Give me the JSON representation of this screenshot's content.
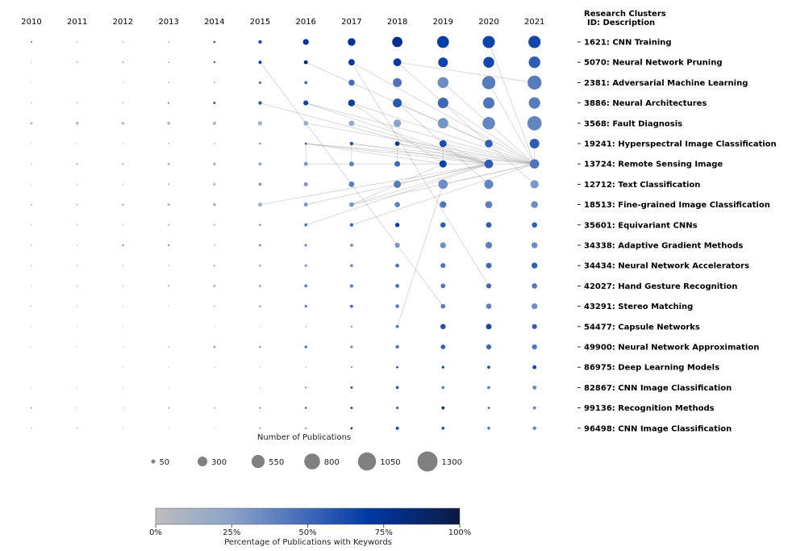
{
  "chart_data": {
    "type": "scatter",
    "subtype": "bubble-timeline",
    "years": [
      "2010",
      "2011",
      "2012",
      "2013",
      "2014",
      "2015",
      "2016",
      "2017",
      "2018",
      "2019",
      "2020",
      "2021"
    ],
    "legend_header": {
      "line1": "Research Clusters",
      "line2": "ID: Description"
    },
    "clusters": [
      {
        "label": "1621: CNN Training",
        "counts": [
          10,
          5,
          5,
          5,
          15,
          40,
          110,
          190,
          340,
          450,
          470,
          480
        ],
        "pct": [
          35,
          30,
          30,
          35,
          55,
          62,
          72,
          75,
          78,
          68,
          66,
          64
        ]
      },
      {
        "label": "5070: Neural Network Pruning",
        "counts": [
          2,
          5,
          2,
          5,
          10,
          30,
          50,
          130,
          200,
          300,
          380,
          430
        ],
        "pct": [
          20,
          35,
          95,
          35,
          70,
          70,
          85,
          72,
          70,
          66,
          64,
          55
        ]
      },
      {
        "label": "2381: Adversarial Machine Learning",
        "counts": [
          2,
          0,
          2,
          5,
          5,
          20,
          30,
          120,
          250,
          380,
          560,
          620
        ],
        "pct": [
          15,
          0,
          20,
          30,
          45,
          50,
          50,
          48,
          45,
          35,
          42,
          42
        ]
      },
      {
        "label": "3886: Neural Architectures",
        "counts": [
          5,
          5,
          5,
          10,
          15,
          40,
          80,
          150,
          250,
          360,
          410,
          420
        ],
        "pct": [
          30,
          20,
          30,
          40,
          70,
          55,
          65,
          68,
          58,
          50,
          45,
          42
        ]
      },
      {
        "label": "3568: Fault Diagnosis",
        "counts": [
          20,
          30,
          25,
          30,
          40,
          60,
          70,
          100,
          180,
          350,
          500,
          650
        ],
        "pct": [
          5,
          5,
          5,
          5,
          5,
          10,
          15,
          18,
          25,
          32,
          38,
          38
        ]
      },
      {
        "label": "19241: Hyperspectral Image Classification",
        "counts": [
          2,
          2,
          2,
          5,
          5,
          10,
          20,
          40,
          70,
          160,
          190,
          300
        ],
        "pct": [
          20,
          20,
          20,
          30,
          30,
          40,
          45,
          60,
          70,
          62,
          55,
          55
        ]
      },
      {
        "label": "13724: Remote Sensing Image",
        "counts": [
          5,
          10,
          10,
          15,
          20,
          30,
          50,
          70,
          100,
          170,
          240,
          280
        ],
        "pct": [
          15,
          15,
          15,
          15,
          20,
          25,
          30,
          40,
          50,
          66,
          55,
          45
        ]
      },
      {
        "label": "12712: Text Classification",
        "counts": [
          2,
          5,
          5,
          10,
          15,
          30,
          50,
          100,
          170,
          280,
          260,
          220
        ],
        "pct": [
          10,
          15,
          15,
          15,
          20,
          30,
          32,
          40,
          42,
          35,
          38,
          30
        ]
      },
      {
        "label": "18513: Fine-grained Image Classification",
        "counts": [
          10,
          10,
          15,
          20,
          30,
          50,
          50,
          70,
          90,
          140,
          160,
          150
        ],
        "pct": [
          5,
          5,
          5,
          5,
          8,
          15,
          30,
          32,
          40,
          45,
          40,
          35
        ]
      },
      {
        "label": "35601: Equivariant CNNs",
        "counts": [
          5,
          5,
          5,
          10,
          10,
          15,
          30,
          40,
          60,
          90,
          100,
          90
        ],
        "pct": [
          15,
          15,
          15,
          15,
          20,
          30,
          45,
          50,
          70,
          55,
          55,
          55
        ]
      },
      {
        "label": "34338: Adaptive Gradient Methods",
        "counts": [
          5,
          5,
          10,
          10,
          5,
          15,
          20,
          30,
          80,
          110,
          140,
          120
        ],
        "pct": [
          20,
          25,
          35,
          35,
          30,
          40,
          40,
          35,
          30,
          35,
          40,
          35
        ]
      },
      {
        "label": "34434: Neural Network Accelerators",
        "counts": [
          5,
          5,
          5,
          5,
          10,
          15,
          20,
          30,
          50,
          80,
          100,
          110
        ],
        "pct": [
          15,
          15,
          15,
          15,
          15,
          20,
          30,
          35,
          45,
          45,
          50,
          55
        ]
      },
      {
        "label": "42027: Hand Gesture Recognition",
        "counts": [
          2,
          5,
          5,
          10,
          20,
          20,
          30,
          40,
          50,
          70,
          80,
          90
        ],
        "pct": [
          15,
          15,
          15,
          15,
          10,
          15,
          40,
          40,
          45,
          45,
          50,
          45
        ]
      },
      {
        "label": "43291: Stereo Matching",
        "counts": [
          2,
          2,
          2,
          2,
          5,
          10,
          20,
          30,
          40,
          70,
          90,
          110
        ],
        "pct": [
          20,
          20,
          20,
          15,
          30,
          40,
          45,
          50,
          45,
          40,
          40,
          35
        ]
      },
      {
        "label": "54477: Capsule Networks",
        "counts": [
          2,
          2,
          2,
          0,
          2,
          2,
          5,
          10,
          30,
          90,
          100,
          80
        ],
        "pct": [
          15,
          15,
          15,
          0,
          15,
          15,
          30,
          35,
          45,
          60,
          65,
          55
        ]
      },
      {
        "label": "49900: Neural Network Approximation",
        "counts": [
          2,
          2,
          2,
          5,
          10,
          10,
          20,
          20,
          40,
          70,
          80,
          80
        ],
        "pct": [
          20,
          20,
          20,
          30,
          45,
          40,
          55,
          40,
          45,
          55,
          50,
          45
        ]
      },
      {
        "label": "86975: Deep Learning Models",
        "counts": [
          0,
          0,
          2,
          2,
          2,
          2,
          2,
          10,
          15,
          20,
          30,
          50
        ],
        "pct": [
          0,
          0,
          15,
          15,
          15,
          15,
          30,
          35,
          65,
          70,
          60,
          65
        ]
      },
      {
        "label": "82867: CNN Image Classification",
        "counts": [
          2,
          2,
          2,
          2,
          0,
          2,
          10,
          20,
          30,
          30,
          30,
          50
        ],
        "pct": [
          15,
          15,
          15,
          15,
          0,
          20,
          35,
          55,
          55,
          40,
          40,
          35
        ]
      },
      {
        "label": "99136: Recognition Methods",
        "counts": [
          2,
          2,
          2,
          10,
          5,
          5,
          10,
          20,
          20,
          30,
          20,
          30
        ],
        "pct": [
          95,
          20,
          20,
          15,
          30,
          80,
          80,
          55,
          55,
          80,
          40,
          40
        ]
      },
      {
        "label": "96498: CNN Image Classification",
        "counts": [
          5,
          5,
          2,
          2,
          2,
          10,
          10,
          15,
          30,
          30,
          30,
          40
        ],
        "pct": [
          20,
          15,
          15,
          15,
          15,
          25,
          35,
          80,
          65,
          55,
          40,
          40
        ]
      }
    ],
    "links": [
      [
        1,
        5,
        13,
        9
      ],
      [
        1,
        6,
        5,
        10
      ],
      [
        1,
        7,
        6,
        11
      ],
      [
        1,
        7,
        12,
        10
      ],
      [
        1,
        8,
        7,
        11
      ],
      [
        1,
        8,
        2,
        11
      ],
      [
        3,
        5,
        6,
        10
      ],
      [
        3,
        6,
        6,
        11
      ],
      [
        3,
        6,
        6,
        10
      ],
      [
        3,
        7,
        6,
        11
      ],
      [
        3,
        7,
        6,
        9
      ],
      [
        3,
        8,
        5,
        10
      ],
      [
        3,
        8,
        7,
        10
      ],
      [
        3,
        9,
        6,
        11
      ],
      [
        4,
        6,
        6,
        11
      ],
      [
        4,
        7,
        6,
        10
      ],
      [
        2,
        9,
        6,
        11
      ],
      [
        2,
        10,
        6,
        11
      ],
      [
        0,
        10,
        6,
        11
      ],
      [
        5,
        6,
        6,
        9
      ],
      [
        5,
        6,
        6,
        10
      ],
      [
        5,
        6,
        6,
        11
      ],
      [
        5,
        7,
        6,
        10
      ],
      [
        5,
        7,
        6,
        11
      ],
      [
        5,
        8,
        6,
        10
      ],
      [
        5,
        8,
        6,
        11
      ],
      [
        5,
        9,
        6,
        10
      ],
      [
        5,
        9,
        6,
        11
      ],
      [
        5,
        10,
        6,
        11
      ],
      [
        6,
        6,
        6,
        7
      ],
      [
        6,
        7,
        6,
        8
      ],
      [
        6,
        8,
        6,
        11
      ],
      [
        5,
        6,
        6,
        6
      ],
      [
        5,
        7,
        6,
        7
      ],
      [
        5,
        8,
        6,
        8
      ],
      [
        5,
        9,
        6,
        9
      ],
      [
        5,
        11,
        6,
        11
      ],
      [
        8,
        5,
        6,
        10
      ],
      [
        8,
        6,
        6,
        10
      ],
      [
        8,
        7,
        6,
        9
      ],
      [
        8,
        7,
        6,
        10
      ],
      [
        8,
        7,
        6,
        11
      ],
      [
        9,
        6,
        6,
        10
      ],
      [
        9,
        7,
        6,
        11
      ],
      [
        7,
        8,
        6,
        10
      ],
      [
        7,
        9,
        6,
        11
      ],
      [
        14,
        8,
        7,
        9
      ]
    ],
    "size_legend": {
      "title": "Number of Publications",
      "values": [
        50,
        300,
        550,
        800,
        1050,
        1300
      ]
    },
    "colorbar": {
      "label": "Percentage of Publications with Keywords",
      "ticks": [
        "0%",
        "25%",
        "50%",
        "75%",
        "100%"
      ],
      "range": [
        0,
        100
      ],
      "colors": [
        "#bdbdbd",
        "#8aa3cb",
        "#3f69b8",
        "#0039a6",
        "#0a1a40"
      ]
    }
  }
}
